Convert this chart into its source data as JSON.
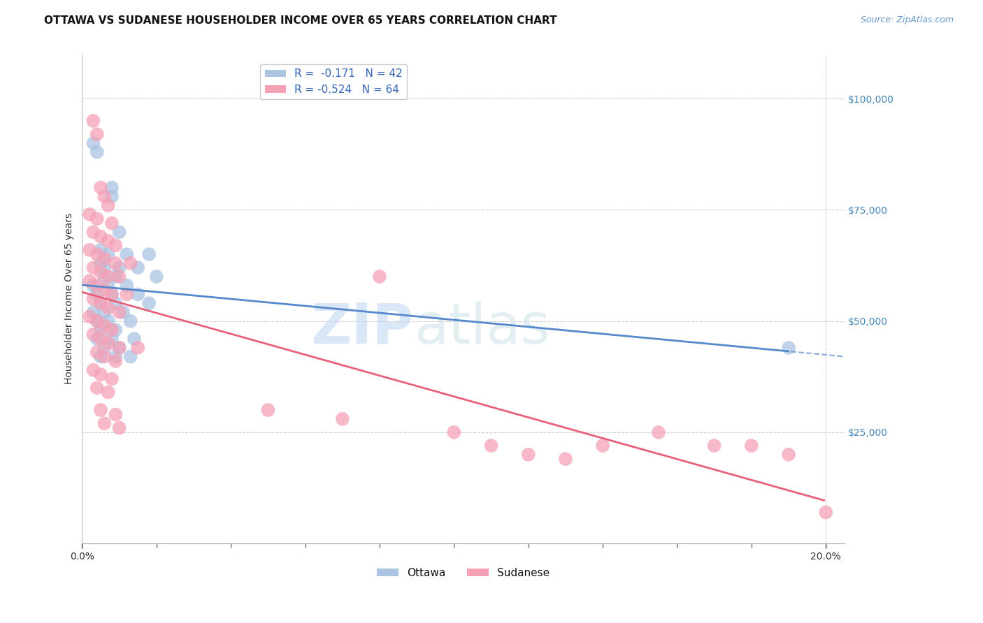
{
  "title": "OTTAWA VS SUDANESE HOUSEHOLDER INCOME OVER 65 YEARS CORRELATION CHART",
  "source": "Source: ZipAtlas.com",
  "ylabel": "Householder Income Over 65 years",
  "xlim": [
    0.0,
    0.205
  ],
  "ylim": [
    0,
    110000
  ],
  "ottawa_R": "-0.171",
  "ottawa_N": "42",
  "sudanese_R": "-0.524",
  "sudanese_N": "64",
  "ottawa_color": "#aac4e2",
  "sudanese_color": "#f5a0b5",
  "ottawa_line_color": "#5588cc",
  "sudanese_line_color": "#e8607a",
  "watermark_zip": "ZIP",
  "watermark_atlas": "atlas",
  "background_color": "#ffffff",
  "grid_color": "#d0d0d0",
  "ylabel_vals": [
    25000,
    50000,
    75000,
    100000
  ],
  "ylabel_ticks": [
    "$25,000",
    "$50,000",
    "$75,000",
    "$100,000"
  ],
  "xlabel_major": [
    0.0,
    0.2
  ],
  "xlabel_major_labels": [
    "0.0%",
    "20.0%"
  ],
  "xlabel_minor": [
    0.02,
    0.04,
    0.06,
    0.08,
    0.1,
    0.12,
    0.14,
    0.16,
    0.18
  ],
  "ottawa_points": [
    [
      0.003,
      90000
    ],
    [
      0.004,
      88000
    ],
    [
      0.008,
      80000
    ],
    [
      0.008,
      78000
    ],
    [
      0.01,
      70000
    ],
    [
      0.005,
      66000
    ],
    [
      0.007,
      65000
    ],
    [
      0.012,
      65000
    ],
    [
      0.018,
      65000
    ],
    [
      0.005,
      63000
    ],
    [
      0.006,
      62000
    ],
    [
      0.01,
      62000
    ],
    [
      0.015,
      62000
    ],
    [
      0.006,
      60000
    ],
    [
      0.009,
      60000
    ],
    [
      0.02,
      60000
    ],
    [
      0.003,
      58000
    ],
    [
      0.007,
      58000
    ],
    [
      0.012,
      58000
    ],
    [
      0.004,
      56000
    ],
    [
      0.008,
      56000
    ],
    [
      0.015,
      56000
    ],
    [
      0.005,
      54000
    ],
    [
      0.009,
      54000
    ],
    [
      0.018,
      54000
    ],
    [
      0.003,
      52000
    ],
    [
      0.006,
      52000
    ],
    [
      0.011,
      52000
    ],
    [
      0.004,
      50000
    ],
    [
      0.007,
      50000
    ],
    [
      0.013,
      50000
    ],
    [
      0.005,
      48000
    ],
    [
      0.009,
      48000
    ],
    [
      0.004,
      46000
    ],
    [
      0.008,
      46000
    ],
    [
      0.014,
      46000
    ],
    [
      0.006,
      44000
    ],
    [
      0.01,
      44000
    ],
    [
      0.005,
      42000
    ],
    [
      0.009,
      42000
    ],
    [
      0.013,
      42000
    ],
    [
      0.19,
      44000
    ]
  ],
  "sudanese_points": [
    [
      0.003,
      95000
    ],
    [
      0.004,
      92000
    ],
    [
      0.005,
      80000
    ],
    [
      0.006,
      78000
    ],
    [
      0.007,
      76000
    ],
    [
      0.002,
      74000
    ],
    [
      0.004,
      73000
    ],
    [
      0.008,
      72000
    ],
    [
      0.003,
      70000
    ],
    [
      0.005,
      69000
    ],
    [
      0.007,
      68000
    ],
    [
      0.009,
      67000
    ],
    [
      0.002,
      66000
    ],
    [
      0.004,
      65000
    ],
    [
      0.006,
      64000
    ],
    [
      0.009,
      63000
    ],
    [
      0.013,
      63000
    ],
    [
      0.003,
      62000
    ],
    [
      0.005,
      61000
    ],
    [
      0.007,
      60000
    ],
    [
      0.01,
      60000
    ],
    [
      0.002,
      59000
    ],
    [
      0.004,
      58000
    ],
    [
      0.006,
      57000
    ],
    [
      0.008,
      56000
    ],
    [
      0.012,
      56000
    ],
    [
      0.003,
      55000
    ],
    [
      0.005,
      54000
    ],
    [
      0.007,
      53000
    ],
    [
      0.01,
      52000
    ],
    [
      0.002,
      51000
    ],
    [
      0.004,
      50000
    ],
    [
      0.006,
      49000
    ],
    [
      0.008,
      48000
    ],
    [
      0.003,
      47000
    ],
    [
      0.005,
      46000
    ],
    [
      0.007,
      45000
    ],
    [
      0.01,
      44000
    ],
    [
      0.015,
      44000
    ],
    [
      0.004,
      43000
    ],
    [
      0.006,
      42000
    ],
    [
      0.009,
      41000
    ],
    [
      0.003,
      39000
    ],
    [
      0.005,
      38000
    ],
    [
      0.008,
      37000
    ],
    [
      0.004,
      35000
    ],
    [
      0.007,
      34000
    ],
    [
      0.005,
      30000
    ],
    [
      0.009,
      29000
    ],
    [
      0.006,
      27000
    ],
    [
      0.01,
      26000
    ],
    [
      0.05,
      30000
    ],
    [
      0.07,
      28000
    ],
    [
      0.1,
      25000
    ],
    [
      0.11,
      22000
    ],
    [
      0.12,
      20000
    ],
    [
      0.13,
      19000
    ],
    [
      0.14,
      22000
    ],
    [
      0.155,
      25000
    ],
    [
      0.17,
      22000
    ],
    [
      0.18,
      22000
    ],
    [
      0.19,
      20000
    ],
    [
      0.2,
      7000
    ],
    [
      0.08,
      60000
    ]
  ]
}
